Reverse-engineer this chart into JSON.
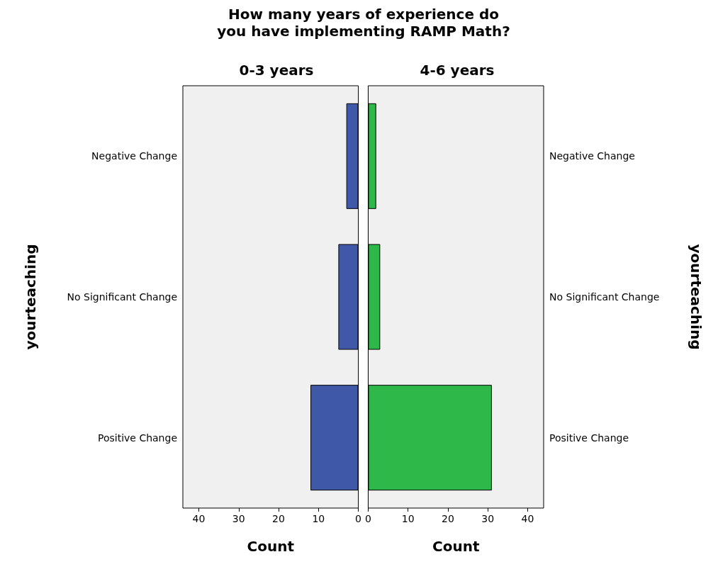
{
  "chart_data": [
    {
      "type": "bar",
      "title": "How many years of experience do\nyou have implementing RAMP Math?",
      "subtitle": "0-3 years",
      "xlabel": "Count",
      "ylabel": "yourteaching",
      "orientation": "horizontal",
      "categories": [
        "Negative Change",
        "No Significant Change",
        "Positive Change"
      ],
      "values": [
        3,
        5,
        12
      ],
      "color": "#3f58a8",
      "xlim": [
        44,
        0
      ],
      "xticks": [
        40,
        30,
        20,
        10,
        0
      ],
      "grid": false
    },
    {
      "type": "bar",
      "subtitle": "4-6 years",
      "xlabel": "Count",
      "y2label": "yourteaching",
      "orientation": "horizontal",
      "categories": [
        "Negative Change",
        "No Significant Change",
        "Positive Change"
      ],
      "values": [
        2,
        3,
        31
      ],
      "color": "#2fb84a",
      "xlim": [
        0,
        44
      ],
      "xticks": [
        0,
        10,
        20,
        30,
        40
      ],
      "grid": false
    }
  ]
}
